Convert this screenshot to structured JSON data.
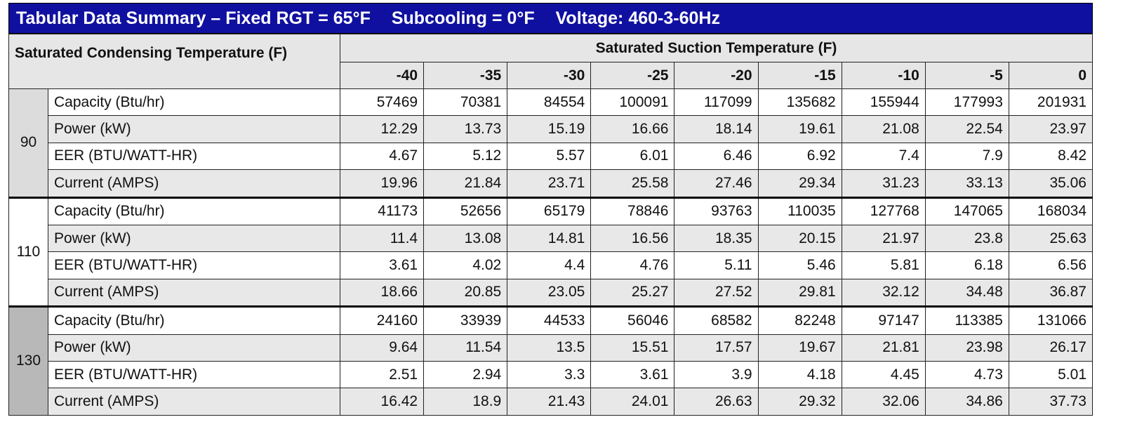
{
  "title": [
    "Tabular Data Summary – Fixed RGT = 65°F",
    "Subcooling = 0°F",
    "Voltage: 460-3-60Hz"
  ],
  "table": {
    "row_header": "Saturated Condensing Temperature (F)",
    "column_header": "Saturated Suction Temperature (F)",
    "columns": [
      -40,
      -35,
      -30,
      -25,
      -20,
      -15,
      -10,
      -5,
      0
    ],
    "groups": [
      {
        "label": "90",
        "rows": [
          {
            "label": "Capacity (Btu/hr)",
            "values": [
              57469,
              70381,
              84554,
              100091,
              117099,
              135682,
              155944,
              177993,
              201931
            ]
          },
          {
            "label": "Power (kW)",
            "values": [
              12.29,
              13.73,
              15.19,
              16.66,
              18.14,
              19.61,
              21.08,
              22.54,
              23.97
            ]
          },
          {
            "label": "EER (BTU/WATT-HR)",
            "values": [
              4.67,
              5.12,
              5.57,
              6.01,
              6.46,
              6.92,
              7.4,
              7.9,
              8.42
            ]
          },
          {
            "label": "Current (AMPS)",
            "values": [
              19.96,
              21.84,
              23.71,
              25.58,
              27.46,
              29.34,
              31.23,
              33.13,
              35.06
            ]
          }
        ]
      },
      {
        "label": "110",
        "rows": [
          {
            "label": "Capacity (Btu/hr)",
            "values": [
              41173,
              52656,
              65179,
              78846,
              93763,
              110035,
              127768,
              147065,
              168034
            ]
          },
          {
            "label": "Power (kW)",
            "values": [
              11.4,
              13.08,
              14.81,
              16.56,
              18.35,
              20.15,
              21.97,
              23.8,
              25.63
            ]
          },
          {
            "label": "EER (BTU/WATT-HR)",
            "values": [
              3.61,
              4.02,
              4.4,
              4.76,
              5.11,
              5.46,
              5.81,
              6.18,
              6.56
            ]
          },
          {
            "label": "Current (AMPS)",
            "values": [
              18.66,
              20.85,
              23.05,
              25.27,
              27.52,
              29.81,
              32.12,
              34.48,
              36.87
            ]
          }
        ]
      },
      {
        "label": "130",
        "rows": [
          {
            "label": "Capacity (Btu/hr)",
            "values": [
              24160,
              33939,
              44533,
              56046,
              68582,
              82248,
              97147,
              113385,
              131066
            ]
          },
          {
            "label": "Power (kW)",
            "values": [
              9.64,
              11.54,
              13.5,
              15.51,
              17.57,
              19.67,
              21.81,
              23.98,
              26.17
            ]
          },
          {
            "label": "EER (BTU/WATT-HR)",
            "values": [
              2.51,
              2.94,
              3.3,
              3.61,
              3.9,
              4.18,
              4.45,
              4.73,
              5.01
            ]
          },
          {
            "label": "Current (AMPS)",
            "values": [
              16.42,
              18.9,
              21.43,
              24.01,
              26.63,
              29.32,
              32.06,
              34.86,
              37.73
            ]
          }
        ]
      }
    ]
  }
}
